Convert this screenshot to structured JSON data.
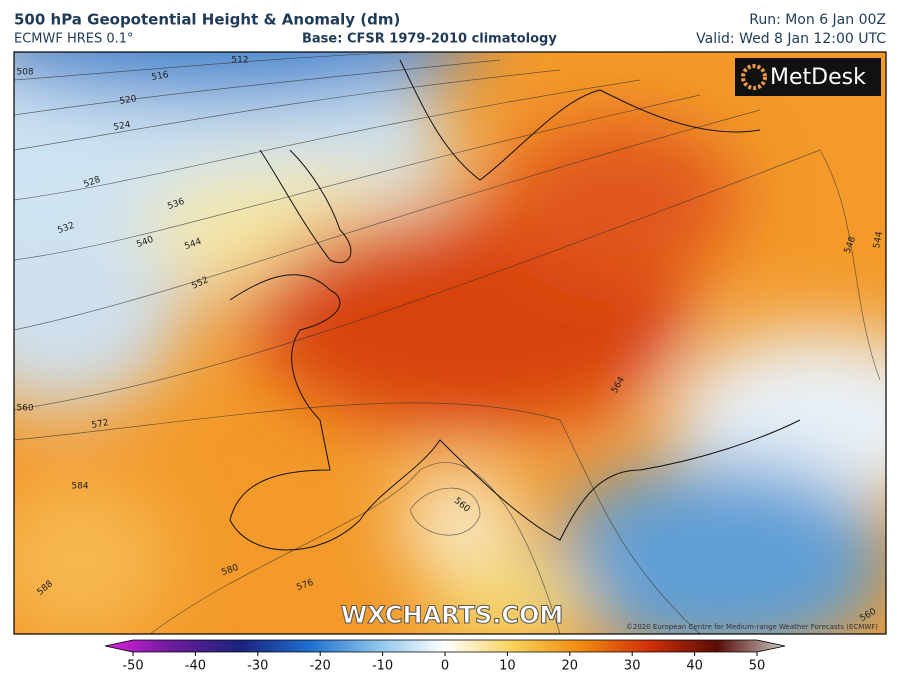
{
  "header": {
    "title": "500 hPa Geopotential Height & Anomaly (dm)",
    "model": "ECMWF HRES 0.1°",
    "base": "Base: CFSR 1979-2010 climatology",
    "run": "Run: Mon 6 Jan 00Z",
    "valid": "Valid: Wed 8 Jan 12:00 UTC"
  },
  "map": {
    "logo": "MetDesk",
    "watermark": "WXCHARTS.COM",
    "copyright": "©2020 European Centre for Medium-range Weather Forecasts (ECMWF)",
    "contour_labels": [
      "508",
      "512",
      "516",
      "520",
      "524",
      "528",
      "532",
      "536",
      "540",
      "544",
      "552",
      "548",
      "544",
      "560",
      "572",
      "584",
      "588",
      "580",
      "576",
      "564",
      "560",
      "560"
    ]
  },
  "colorbar": {
    "range": [
      -50,
      50
    ],
    "ticks": [
      -50,
      -40,
      -30,
      -20,
      -10,
      0,
      10,
      20,
      30,
      40,
      50
    ]
  }
}
